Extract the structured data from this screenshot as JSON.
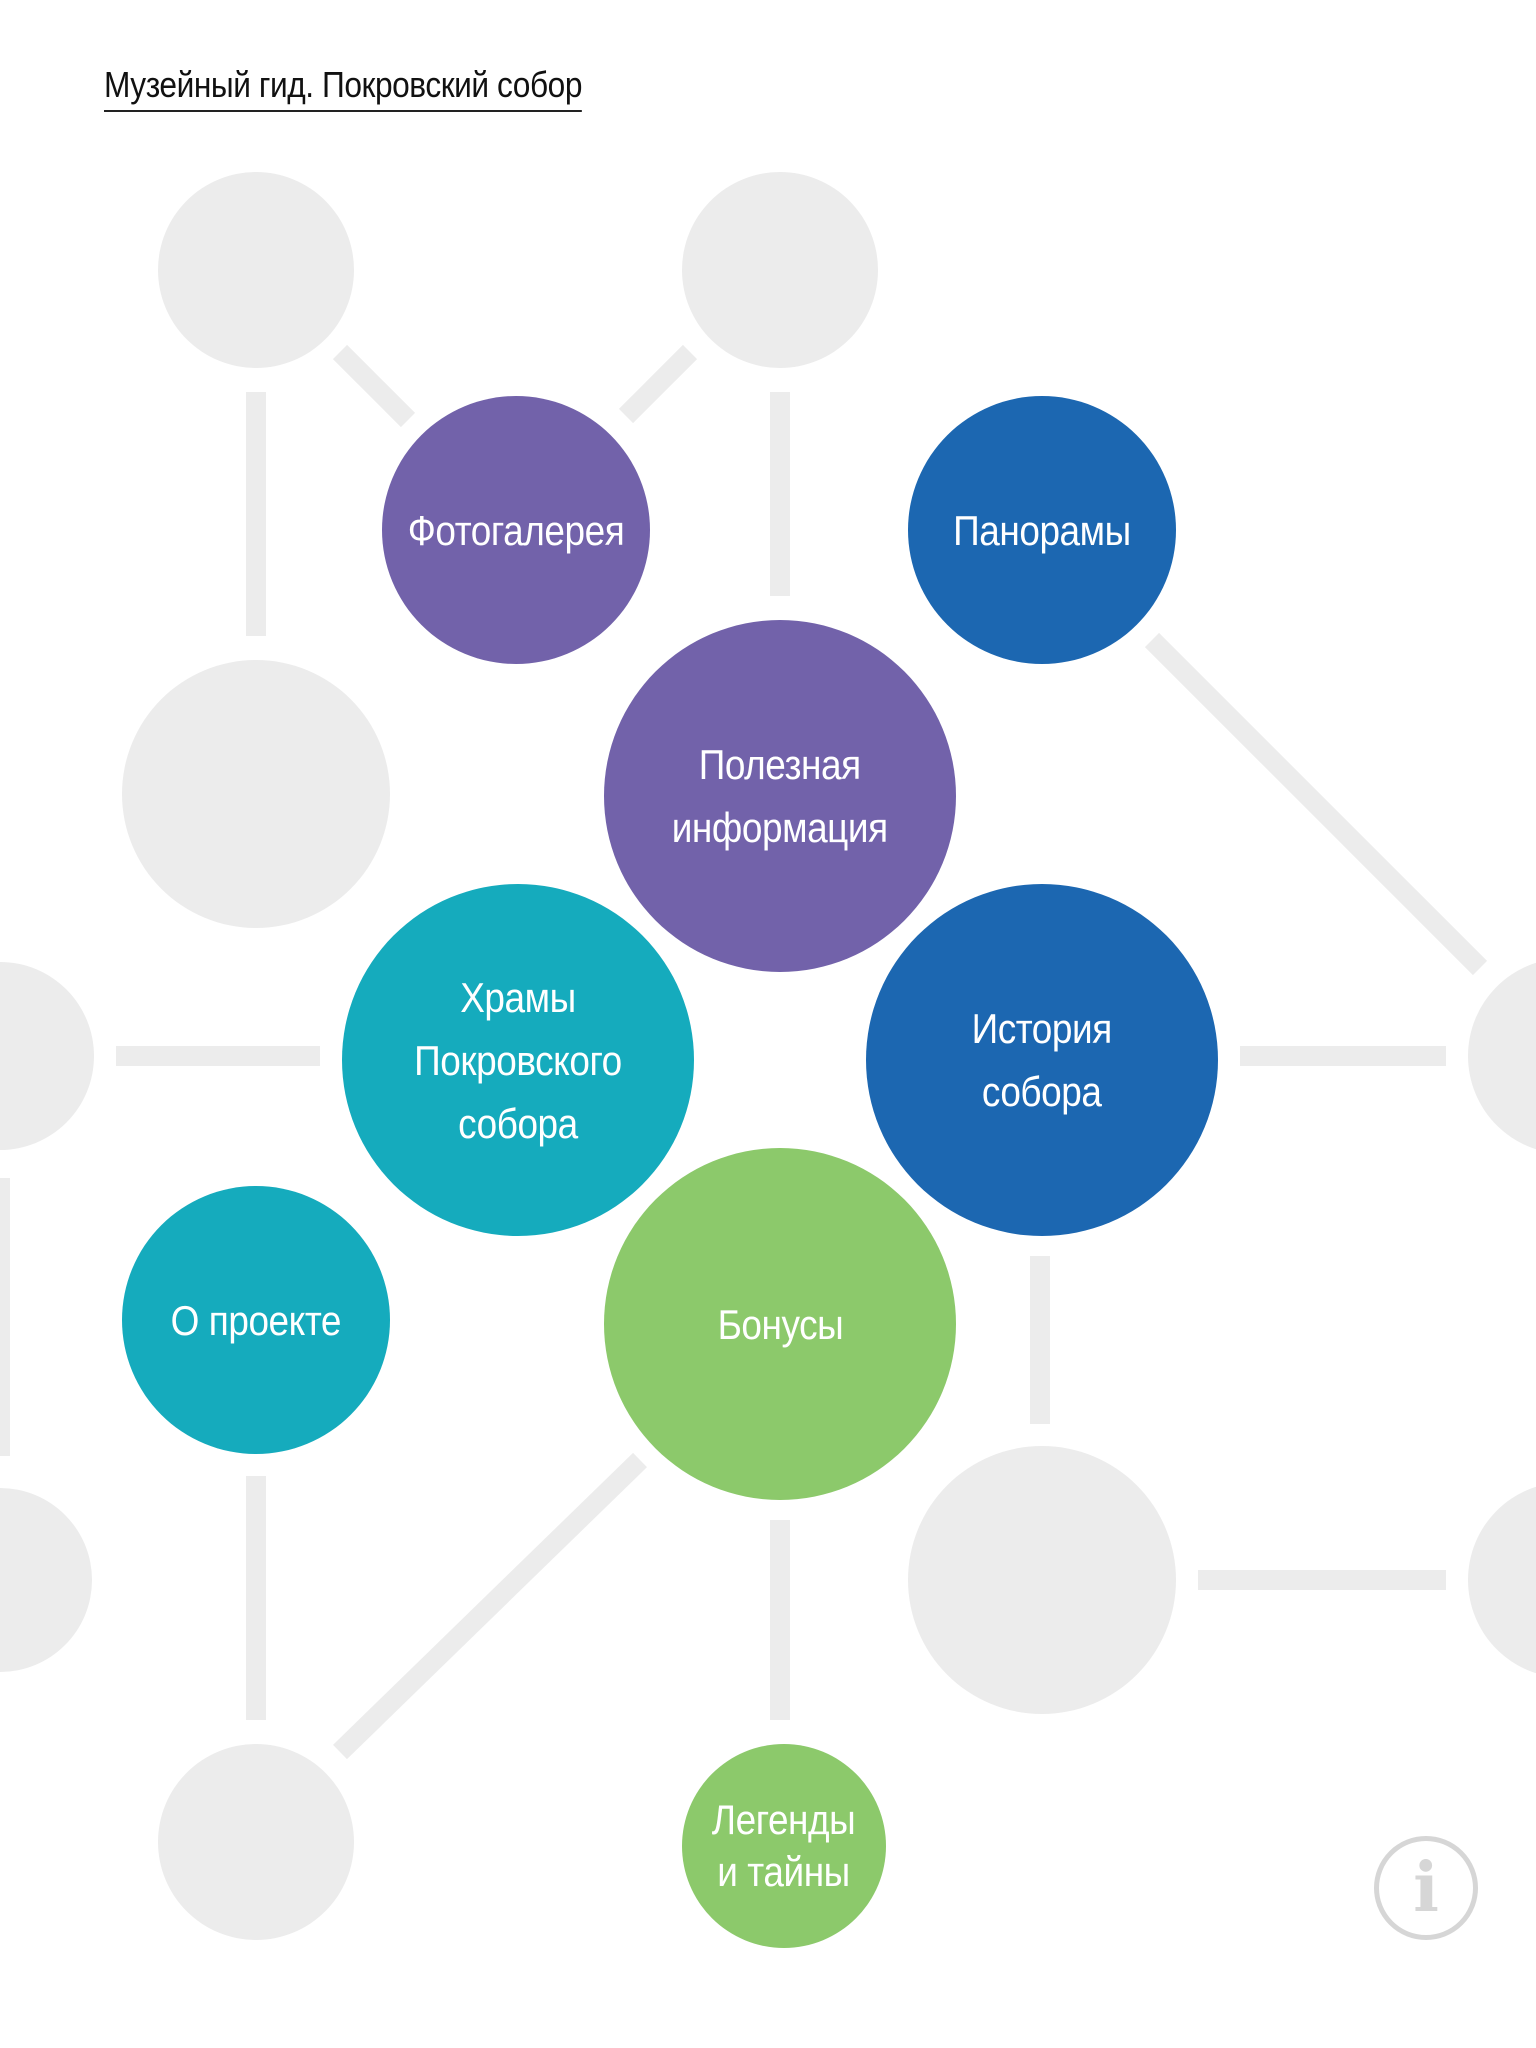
{
  "header": {
    "title": "Музейный гид. Покровский собор"
  },
  "colors": {
    "purple": "#7262aa",
    "blue": "#1c67b1",
    "teal": "#15abbd",
    "green": "#8cc96b",
    "decor": "#ececec"
  },
  "menu": [
    {
      "id": "gallery",
      "label": "Фотогалерея",
      "color": "purple"
    },
    {
      "id": "panoramas",
      "label": "Панорамы",
      "color": "blue"
    },
    {
      "id": "useful-info",
      "label": "Полезная\nинформация",
      "color": "purple"
    },
    {
      "id": "churches",
      "label": "Храмы\nПокровского\nсобора",
      "color": "teal"
    },
    {
      "id": "history",
      "label": "История\nсобора",
      "color": "blue"
    },
    {
      "id": "about",
      "label": "О проекте",
      "color": "teal"
    },
    {
      "id": "bonuses",
      "label": "Бонусы",
      "color": "green"
    },
    {
      "id": "legends",
      "label": "Легенды\nи тайны",
      "color": "green"
    }
  ],
  "info_button": {
    "icon": "info-icon",
    "glyph": "i"
  }
}
